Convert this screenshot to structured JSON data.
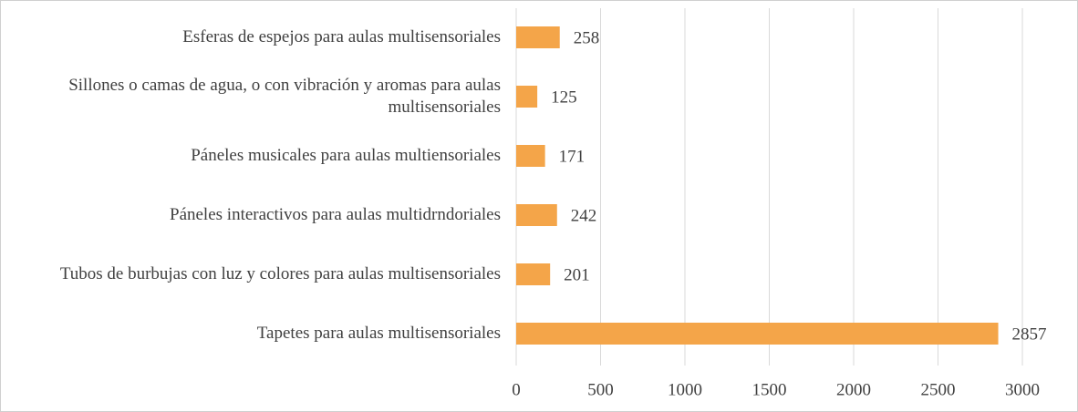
{
  "chart_data": {
    "type": "bar",
    "orientation": "horizontal",
    "categories": [
      "Esferas de espejos para aulas multisensoriales",
      "Sillones o camas de agua, o con vibración y aromas para aulas multisensoriales",
      "Páneles musicales para aulas multiensoriales",
      "Páneles interactivos para aulas multidrndoriales",
      "Tubos de burbujas con luz y colores para aulas multisensoriales",
      "Tapetes para aulas multisensoriales"
    ],
    "values": [
      258,
      125,
      171,
      242,
      201,
      2857
    ],
    "color": "#f4a549",
    "xlim": [
      0,
      3000
    ],
    "xticks": [
      0,
      500,
      1000,
      1500,
      2000,
      2500,
      3000
    ],
    "grid": true
  }
}
